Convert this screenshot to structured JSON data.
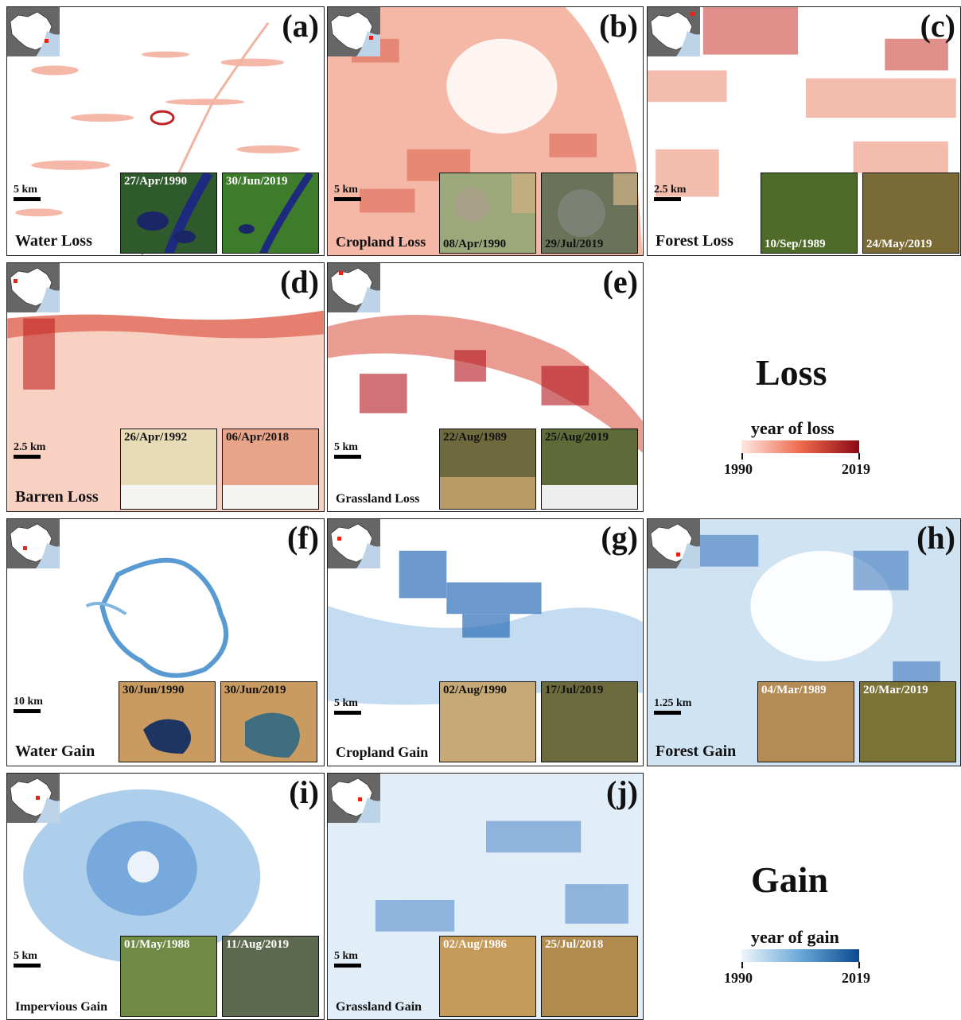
{
  "colors": {
    "loss_start": "#fbe3da",
    "loss_end": "#8b0a14",
    "gain_start": "#e8f1fa",
    "gain_end": "#0b4a8f"
  },
  "loss_legend": {
    "heading": "Loss",
    "title": "year of loss",
    "min": "1990",
    "max": "2019"
  },
  "gain_legend": {
    "heading": "Gain",
    "title": "year of gain",
    "min": "1990",
    "max": "2019"
  },
  "panels": {
    "a": {
      "letter": "(a)",
      "title": "Water Loss",
      "scale": "5 km",
      "date1": "27/Apr/1990",
      "date2": "30/Jun/2019"
    },
    "b": {
      "letter": "(b)",
      "title": "Cropland Loss",
      "scale": "5 km",
      "date1": "08/Apr/1990",
      "date2": "29/Jul/2019"
    },
    "c": {
      "letter": "(c)",
      "title": "Forest Loss",
      "scale": "2.5 km",
      "date1": "10/Sep/1989",
      "date2": "24/May/2019"
    },
    "d": {
      "letter": "(d)",
      "title": "Barren Loss",
      "scale": "2.5 km",
      "date1": "26/Apr/1992",
      "date2": "06/Apr/2018"
    },
    "e": {
      "letter": "(e)",
      "title": "Grassland Loss",
      "scale": "5 km",
      "date1": "22/Aug/1989",
      "date2": "25/Aug/2019"
    },
    "f": {
      "letter": "(f)",
      "title": "Water Gain",
      "scale": "10 km",
      "date1": "30/Jun/1990",
      "date2": "30/Jun/2019"
    },
    "g": {
      "letter": "(g)",
      "title": "Cropland Gain",
      "scale": "5 km",
      "date1": "02/Aug/1990",
      "date2": "17/Jul/2019"
    },
    "h": {
      "letter": "(h)",
      "title": "Forest Gain",
      "scale": "1.25 km",
      "date1": "04/Mar/1989",
      "date2": "20/Mar/2019"
    },
    "i": {
      "letter": "(i)",
      "title": "Impervious Gain",
      "scale": "5 km",
      "date1": "01/May/1988",
      "date2": "11/Aug/2019"
    },
    "j": {
      "letter": "(j)",
      "title": "Grassland Gain",
      "scale": "5 km",
      "date1": "02/Aug/1986",
      "date2": "25/Jul/2018"
    }
  }
}
